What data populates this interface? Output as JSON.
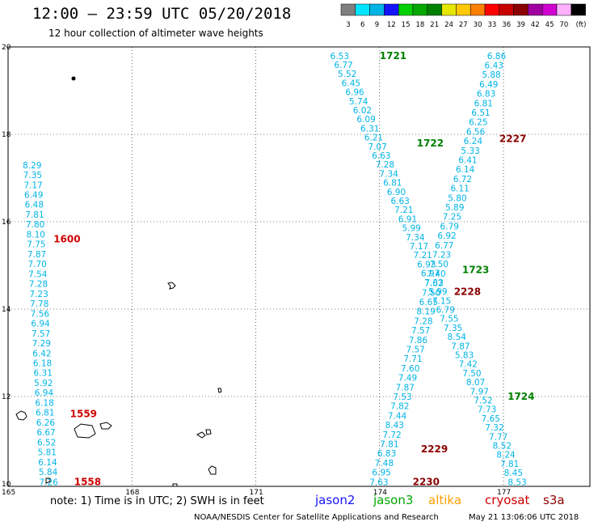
{
  "title": "12:00 – 23:59 UTC 05/20/2018",
  "subtitle": "12 hour collection of altimeter wave heights",
  "color_scale": {
    "unit": "(ft)",
    "entries": [
      {
        "label": "3",
        "color": "#7f7f7f"
      },
      {
        "label": "6",
        "color": "#00e5ff"
      },
      {
        "label": "9",
        "color": "#00b4e6"
      },
      {
        "label": "12",
        "color": "#1414ff"
      },
      {
        "label": "15",
        "color": "#00d000"
      },
      {
        "label": "18",
        "color": "#00a800"
      },
      {
        "label": "21",
        "color": "#008000"
      },
      {
        "label": "24",
        "color": "#e6e600"
      },
      {
        "label": "27",
        "color": "#ffc800"
      },
      {
        "label": "30",
        "color": "#ff7f00"
      },
      {
        "label": "33",
        "color": "#ff0000"
      },
      {
        "label": "36",
        "color": "#c80000"
      },
      {
        "label": "39",
        "color": "#8b0000"
      },
      {
        "label": "42",
        "color": "#a000a0"
      },
      {
        "label": "45",
        "color": "#d000d0"
      },
      {
        "label": "70",
        "color": "#ffb0ff"
      },
      {
        "label": "",
        "color": "#000000"
      }
    ]
  },
  "axes": {
    "lon_ticks": [
      "165",
      "168",
      "171",
      "174",
      "177"
    ],
    "lat_ticks": [
      "20",
      "18",
      "16",
      "14",
      "12",
      "10"
    ]
  },
  "pass_labels": [
    {
      "text": "1721",
      "color": "#008000",
      "lon": 174.0,
      "lat": 19.8
    },
    {
      "text": "1722",
      "color": "#008000",
      "lon": 174.9,
      "lat": 17.8
    },
    {
      "text": "1723",
      "color": "#008000",
      "lon": 176.0,
      "lat": 14.9
    },
    {
      "text": "1724",
      "color": "#008000",
      "lon": 177.1,
      "lat": 12.0
    },
    {
      "text": "2227",
      "color": "#8b0000",
      "lon": 176.9,
      "lat": 17.9
    },
    {
      "text": "2228",
      "color": "#8b0000",
      "lon": 175.8,
      "lat": 14.4
    },
    {
      "text": "2229",
      "color": "#8b0000",
      "lon": 175.0,
      "lat": 10.8
    },
    {
      "text": "2230",
      "color": "#8b0000",
      "lon": 174.8,
      "lat": 10.05
    },
    {
      "text": "1600",
      "color": "#d00000",
      "lon": 166.1,
      "lat": 15.6
    },
    {
      "text": "1559",
      "color": "#d00000",
      "lon": 166.5,
      "lat": 11.6
    },
    {
      "text": "1558",
      "color": "#d00000",
      "lon": 166.6,
      "lat": 10.05
    }
  ],
  "tracks": [
    {
      "name": "track-1600-1558",
      "lon_start": 165.55,
      "lat_start": 17.3,
      "lon_end": 165.95,
      "lat_end": 10.05,
      "values": [
        "8.29",
        "7.35",
        "7.17",
        "6.49",
        "6.48",
        "7.81",
        "7.80",
        "8.10",
        "7.75",
        "7.87",
        "7.70",
        "7.54",
        "7.28",
        "7.23",
        "7.78",
        "7.56",
        "6.94",
        "7.57",
        "7.29",
        "6.42",
        "6.18",
        "6.31",
        "5.92",
        "6.94",
        "6.18",
        "6.81",
        "6.26",
        "6.67",
        "6.52",
        "5.81",
        "6.14",
        "5.84",
        "7.26"
      ]
    },
    {
      "name": "track-1721-1724",
      "lon_start": 173.0,
      "lat_start": 19.8,
      "lon_end": 177.3,
      "lat_end": 10.05,
      "values": [
        "6.53",
        "6.77",
        "5.52",
        "6.45",
        "6.96",
        "5.74",
        "6.02",
        "6.09",
        "6.31",
        "6.21",
        "7.07",
        "6.63",
        "7.28",
        "7.34",
        "6.81",
        "6.90",
        "6.63",
        "7.21",
        "6.91",
        "5.99",
        "7.34",
        "7.17",
        "7.21",
        "6.93",
        "6.97",
        "7.33",
        "5.99",
        "7.15",
        "6.79",
        "7.55",
        "7.35",
        "8.54",
        "7.87",
        "5.83",
        "7.42",
        "7.50",
        "8.07",
        "7.97",
        "7.52",
        "7.73",
        "7.65",
        "7.32",
        "7.77",
        "8.52",
        "8.24",
        "7.81",
        "8.45",
        "8.53"
      ]
    },
    {
      "name": "track-2227-2230",
      "lon_start": 176.8,
      "lat_start": 19.8,
      "lon_end": 173.95,
      "lat_end": 10.05,
      "values": [
        "6.86",
        "6.43",
        "5.88",
        "6.49",
        "6.83",
        "6.81",
        "6.51",
        "6.25",
        "6.56",
        "6.24",
        "5.33",
        "6.41",
        "6.14",
        "6.72",
        "6.11",
        "5.80",
        "5.89",
        "7.25",
        "6.79",
        "6.92",
        "6.77",
        "7.23",
        "7.50",
        "7.40",
        "7.62",
        "7.50",
        "6.65",
        "8.19",
        "7.28",
        "7.57",
        "7.86",
        "7.57",
        "7.71",
        "7.60",
        "7.49",
        "7.87",
        "7.53",
        "7.82",
        "7.44",
        "8.43",
        "7.72",
        "7.81",
        "6.83",
        "7.48",
        "6.95",
        "7.63"
      ]
    }
  ],
  "footer": {
    "note": "note:  1) Time is in UTC;  2) SWH is in feet",
    "legend": [
      {
        "text": "jason2",
        "color": "#1414ff"
      },
      {
        "text": "jason3",
        "color": "#00a800"
      },
      {
        "text": "altika",
        "color": "#ffa000"
      },
      {
        "text": "cryosat",
        "color": "#d00000"
      },
      {
        "text": "s3a",
        "color": "#8b0000"
      }
    ],
    "credit": "NOAA/NESDIS Center for Satellite Applications and Research",
    "timestamp": "May 21 13:06:06 UTC 2018"
  },
  "colors": {
    "value_text": "#00b4e6",
    "grid": "#000000"
  }
}
